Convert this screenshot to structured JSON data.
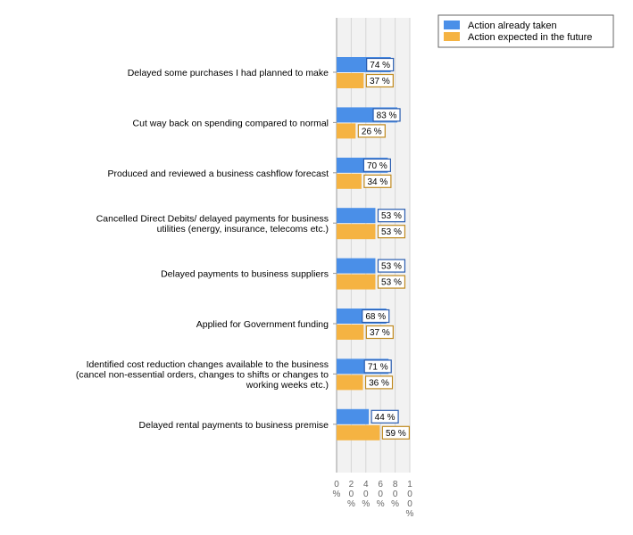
{
  "chart_data": {
    "type": "bar",
    "orientation": "horizontal",
    "categories": [
      [
        "Delayed some purchases I had planned to make"
      ],
      [
        "Cut way back on spending compared to normal"
      ],
      [
        "Produced and reviewed a business cashflow forecast"
      ],
      [
        "Cancelled Direct Debits/ delayed  payments for business",
        "utilities (energy, insurance, telecoms etc.)"
      ],
      [
        "Delayed payments to business suppliers"
      ],
      [
        "Applied for Government funding"
      ],
      [
        "Identified cost reduction changes available to the business",
        "(cancel non-essential orders, changes to shifts or changes to",
        "working weeks etc.)"
      ],
      [
        "Delayed rental payments to business premise"
      ]
    ],
    "series": [
      {
        "name": "Action already taken",
        "color": "#4a8fe8",
        "values": [
          74,
          83,
          70,
          53,
          53,
          68,
          71,
          44
        ]
      },
      {
        "name": "Action expected in the future",
        "color": "#f5b342",
        "values": [
          37,
          26,
          34,
          53,
          53,
          37,
          36,
          59
        ]
      }
    ],
    "xlim": [
      0,
      100
    ],
    "x_ticks": [
      0,
      20,
      40,
      60,
      80,
      100
    ],
    "value_suffix": " %",
    "tick_suffix": "%",
    "grid": true,
    "legend_position": "top-right",
    "title": "",
    "xlabel": "",
    "ylabel": ""
  }
}
